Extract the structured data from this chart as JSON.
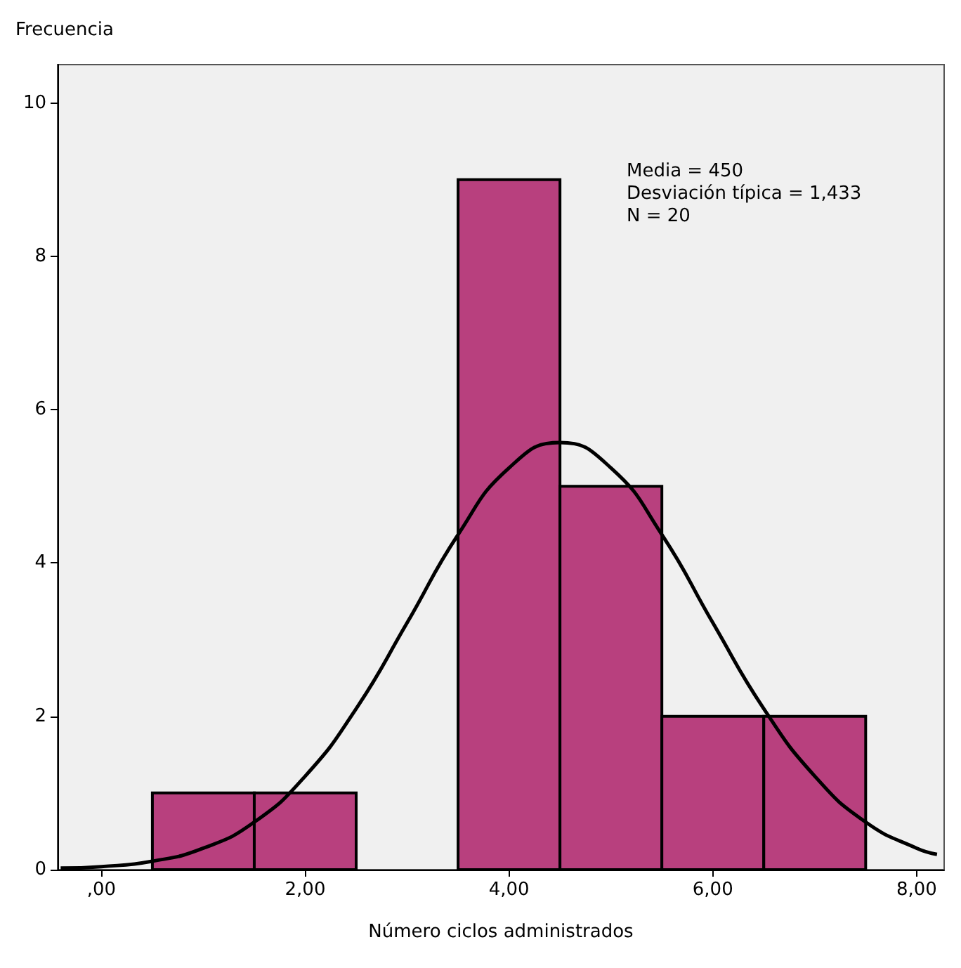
{
  "chart_data": {
    "type": "histogram",
    "xlabel": "Número ciclos administrados",
    "ylabel": "Frecuencia",
    "bins": [
      0.5,
      1.5,
      2.5,
      3.5,
      4.5,
      5.5,
      6.5,
      7.5
    ],
    "values": [
      1,
      1,
      0,
      9,
      5,
      2,
      2
    ],
    "color": "#b8407e",
    "series": [
      {
        "type": "line",
        "color": "#000000",
        "x": [
          -0.4,
          0,
          0.5,
          1,
          1.5,
          2,
          2.5,
          3,
          3.5,
          4,
          4.5,
          5,
          5.5,
          6,
          6.5,
          7,
          7.5,
          8,
          8.2
        ],
        "values": [
          0.02,
          0.04,
          0.11,
          0.28,
          0.62,
          1.22,
          2.1,
          3.22,
          4.37,
          5.24,
          5.57,
          5.24,
          4.37,
          3.22,
          2.1,
          1.22,
          0.62,
          0.28,
          0.2
        ]
      }
    ],
    "xlim": [
      -0.43,
      8.27
    ],
    "xticks": [
      {
        "value": 0,
        "label": ",00"
      },
      {
        "value": 2,
        "label": "2,00"
      },
      {
        "value": 4,
        "label": "4,00"
      },
      {
        "value": 6,
        "label": "6,00"
      },
      {
        "value": 8,
        "label": "8,00"
      }
    ],
    "ylim": [
      0,
      10.5
    ],
    "yticks": [
      0,
      2,
      4,
      6,
      8,
      10
    ],
    "annotations": [
      "Media = 450",
      "Desviación típica = 1,433",
      "N = 20"
    ],
    "grid": false
  }
}
